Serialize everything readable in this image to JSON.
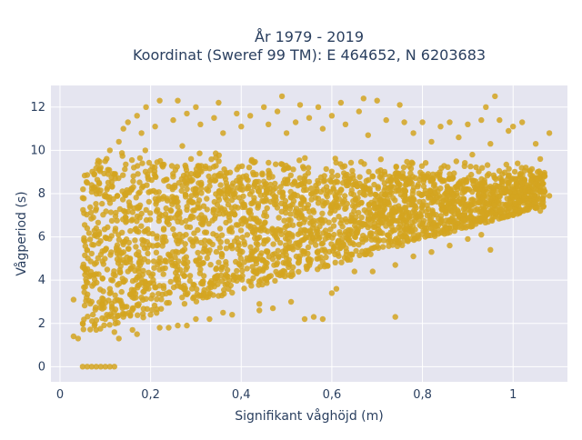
{
  "chart_data": {
    "type": "scatter",
    "title_line1": "År 1979 - 2019",
    "title_line2": "Koordinat (Sweref 99 TM): E 464652, N 6203683",
    "xlabel": "Signifikant våghöjd (m)",
    "ylabel": "Vågperiod (s)",
    "xlim": [
      -0.02,
      1.12
    ],
    "ylim": [
      -0.7,
      13.0
    ],
    "grid": true,
    "x_ticks": [
      0,
      0.2,
      0.4,
      0.6,
      0.8,
      1.0
    ],
    "x_tick_labels": [
      "0",
      "0,2",
      "0,4",
      "0,6",
      "0,8",
      "1"
    ],
    "y_ticks": [
      0,
      2,
      4,
      6,
      8,
      10,
      12
    ],
    "y_tick_labels": [
      "0",
      "2",
      "4",
      "6",
      "8",
      "10",
      "12"
    ],
    "marker_color": "#d4a520",
    "plot_bgcolor": "#e5e5f0",
    "series": [
      {
        "points": [
          [
            0.05,
            0.0
          ],
          [
            0.06,
            0.0
          ],
          [
            0.07,
            0.0
          ],
          [
            0.08,
            0.0
          ],
          [
            0.09,
            0.0
          ],
          [
            0.1,
            0.0
          ],
          [
            0.11,
            0.0
          ],
          [
            0.12,
            0.0
          ],
          [
            0.03,
            1.4
          ],
          [
            0.03,
            3.1
          ],
          [
            0.04,
            1.3
          ],
          [
            0.05,
            2.0
          ],
          [
            0.05,
            4.6
          ],
          [
            0.05,
            7.8
          ],
          [
            0.06,
            8.5
          ],
          [
            0.06,
            6.4
          ],
          [
            0.07,
            3.0
          ],
          [
            0.07,
            8.4
          ],
          [
            0.08,
            1.7
          ],
          [
            0.08,
            4.8
          ],
          [
            0.08,
            7.3
          ],
          [
            0.09,
            9.2
          ],
          [
            0.1,
            2.2
          ],
          [
            0.1,
            9.5
          ],
          [
            0.11,
            3.6
          ],
          [
            0.11,
            10.0
          ],
          [
            0.12,
            1.6
          ],
          [
            0.12,
            8.9
          ],
          [
            0.13,
            5.4
          ],
          [
            0.13,
            10.4
          ],
          [
            0.14,
            2.3
          ],
          [
            0.14,
            11.0
          ],
          [
            0.15,
            4.4
          ],
          [
            0.15,
            11.3
          ],
          [
            0.16,
            1.7
          ],
          [
            0.16,
            6.8
          ],
          [
            0.17,
            11.6
          ],
          [
            0.18,
            3.2
          ],
          [
            0.18,
            10.8
          ],
          [
            0.19,
            12.0
          ],
          [
            0.2,
            2.4
          ],
          [
            0.2,
            8.1
          ],
          [
            0.21,
            11.1
          ],
          [
            0.22,
            12.3
          ],
          [
            0.24,
            1.8
          ],
          [
            0.25,
            11.4
          ],
          [
            0.26,
            12.3
          ],
          [
            0.27,
            10.2
          ],
          [
            0.28,
            1.9
          ],
          [
            0.28,
            11.7
          ],
          [
            0.3,
            4.9
          ],
          [
            0.3,
            12.0
          ],
          [
            0.31,
            11.2
          ],
          [
            0.33,
            2.2
          ],
          [
            0.34,
            11.5
          ],
          [
            0.35,
            12.2
          ],
          [
            0.36,
            10.8
          ],
          [
            0.38,
            2.4
          ],
          [
            0.39,
            11.7
          ],
          [
            0.4,
            11.1
          ],
          [
            0.42,
            6.5
          ],
          [
            0.42,
            11.6
          ],
          [
            0.44,
            2.6
          ],
          [
            0.45,
            12.0
          ],
          [
            0.46,
            11.2
          ],
          [
            0.47,
            2.7
          ],
          [
            0.48,
            11.8
          ],
          [
            0.49,
            12.5
          ],
          [
            0.5,
            10.8
          ],
          [
            0.51,
            3.0
          ],
          [
            0.52,
            11.3
          ],
          [
            0.53,
            12.1
          ],
          [
            0.54,
            2.2
          ],
          [
            0.55,
            11.5
          ],
          [
            0.56,
            2.3
          ],
          [
            0.57,
            12.0
          ],
          [
            0.58,
            2.2
          ],
          [
            0.58,
            11.0
          ],
          [
            0.6,
            11.6
          ],
          [
            0.61,
            3.6
          ],
          [
            0.62,
            12.2
          ],
          [
            0.63,
            11.2
          ],
          [
            0.65,
            4.4
          ],
          [
            0.66,
            11.8
          ],
          [
            0.67,
            12.4
          ],
          [
            0.68,
            10.7
          ],
          [
            0.69,
            4.4
          ],
          [
            0.7,
            12.3
          ],
          [
            0.72,
            11.4
          ],
          [
            0.74,
            4.7
          ],
          [
            0.75,
            12.1
          ],
          [
            0.76,
            11.3
          ],
          [
            0.78,
            5.1
          ],
          [
            0.78,
            10.8
          ],
          [
            0.8,
            11.3
          ],
          [
            0.82,
            5.3
          ],
          [
            0.82,
            10.4
          ],
          [
            0.84,
            11.1
          ],
          [
            0.86,
            5.6
          ],
          [
            0.86,
            11.3
          ],
          [
            0.88,
            10.6
          ],
          [
            0.9,
            5.9
          ],
          [
            0.9,
            11.2
          ],
          [
            0.91,
            9.8
          ],
          [
            0.93,
            11.4
          ],
          [
            0.93,
            6.1
          ],
          [
            0.94,
            12.0
          ],
          [
            0.95,
            5.4
          ],
          [
            0.95,
            10.3
          ],
          [
            0.96,
            12.5
          ],
          [
            0.97,
            11.4
          ],
          [
            0.98,
            6.9
          ],
          [
            0.99,
            10.9
          ],
          [
            1.0,
            7.0
          ],
          [
            1.0,
            11.1
          ],
          [
            1.01,
            9.4
          ],
          [
            1.02,
            11.3
          ],
          [
            1.03,
            7.3
          ],
          [
            1.04,
            8.6
          ],
          [
            1.05,
            10.3
          ],
          [
            1.06,
            9.6
          ],
          [
            1.07,
            8.8
          ],
          [
            1.08,
            10.8
          ],
          [
            1.08,
            7.9
          ],
          [
            1.06,
            7.2
          ],
          [
            1.07,
            8.1
          ],
          [
            0.86,
            8.9
          ],
          [
            0.74,
            2.3
          ],
          [
            0.6,
            3.4
          ],
          [
            0.44,
            2.9
          ],
          [
            0.36,
            2.5
          ],
          [
            0.3,
            2.2
          ],
          [
            0.26,
            1.9
          ],
          [
            0.22,
            1.8
          ],
          [
            0.17,
            1.5
          ],
          [
            0.13,
            1.3
          ]
        ]
      }
    ],
    "density_region": {
      "x_min": 0.05,
      "x_max": 1.07,
      "lower_intercept": 1.2,
      "lower_slope": 5.8,
      "upper_intercept": 9.3,
      "upper_slope": -0.8
    }
  }
}
